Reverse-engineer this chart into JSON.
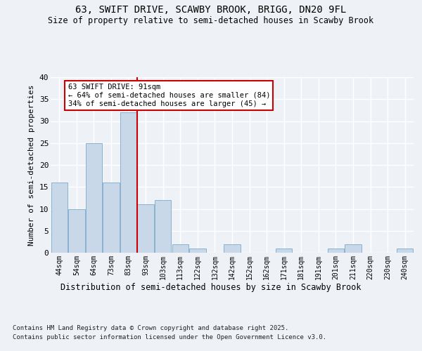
{
  "title1": "63, SWIFT DRIVE, SCAWBY BROOK, BRIGG, DN20 9FL",
  "title2": "Size of property relative to semi-detached houses in Scawby Brook",
  "xlabel": "Distribution of semi-detached houses by size in Scawby Brook",
  "ylabel": "Number of semi-detached properties",
  "categories": [
    "44sqm",
    "54sqm",
    "64sqm",
    "73sqm",
    "83sqm",
    "93sqm",
    "103sqm",
    "113sqm",
    "122sqm",
    "132sqm",
    "142sqm",
    "152sqm",
    "162sqm",
    "171sqm",
    "181sqm",
    "191sqm",
    "201sqm",
    "211sqm",
    "220sqm",
    "230sqm",
    "240sqm"
  ],
  "values": [
    16,
    10,
    25,
    16,
    32,
    11,
    12,
    2,
    1,
    0,
    2,
    0,
    0,
    1,
    0,
    0,
    1,
    2,
    0,
    0,
    1
  ],
  "bar_color": "#c8d8e8",
  "bar_edge_color": "#7aaacb",
  "highlight_line_color": "#cc0000",
  "annotation_title": "63 SWIFT DRIVE: 91sqm",
  "annotation_line1": "← 64% of semi-detached houses are smaller (84)",
  "annotation_line2": "34% of semi-detached houses are larger (45) →",
  "annotation_box_color": "#cc0000",
  "ylim": [
    0,
    40
  ],
  "yticks": [
    0,
    5,
    10,
    15,
    20,
    25,
    30,
    35,
    40
  ],
  "footnote1": "Contains HM Land Registry data © Crown copyright and database right 2025.",
  "footnote2": "Contains public sector information licensed under the Open Government Licence v3.0.",
  "bg_color": "#eef2f7",
  "grid_color": "#ffffff"
}
